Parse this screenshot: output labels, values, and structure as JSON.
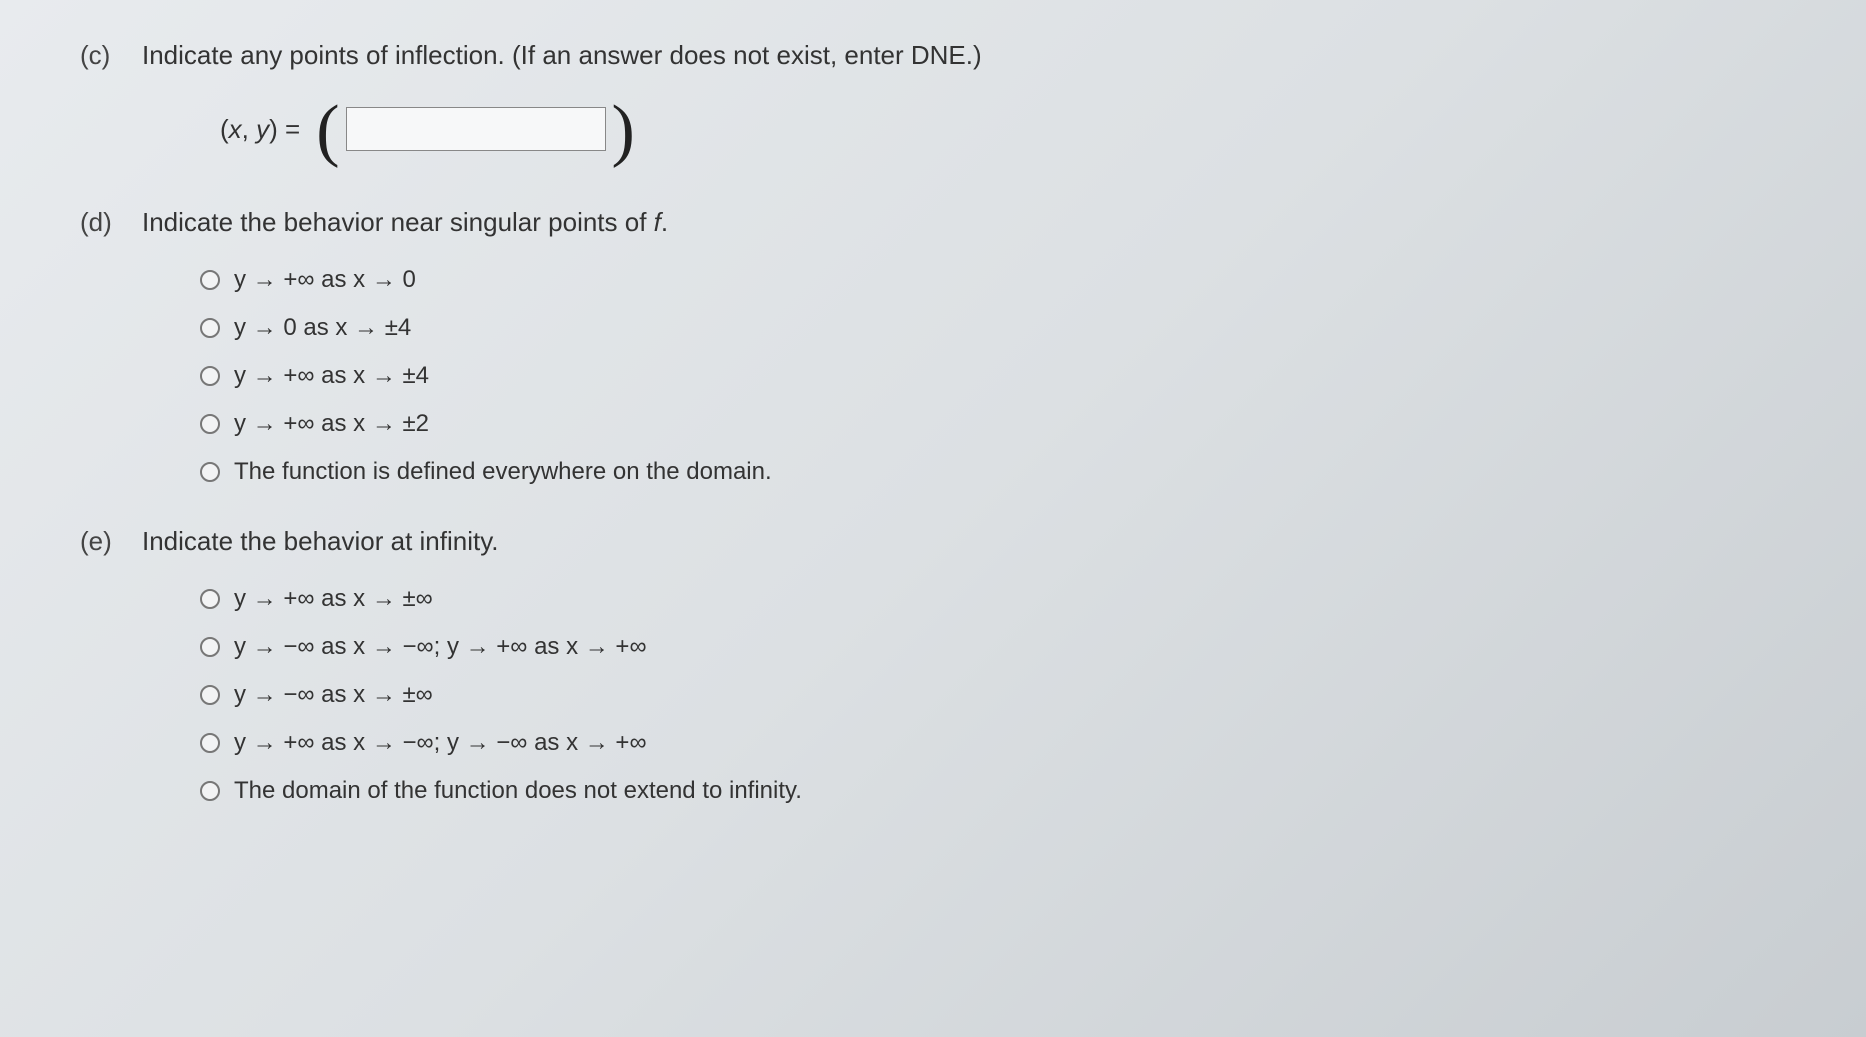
{
  "part_c": {
    "label": "(c)",
    "prompt": "Indicate any points of inflection. (If an answer does not exist, enter DNE.)",
    "xy_prefix": "(x, y) = ",
    "input_value": ""
  },
  "part_d": {
    "label": "(d)",
    "prompt_prefix": "Indicate the behavior near singular points of ",
    "prompt_fvar": "f",
    "prompt_suffix": ".",
    "options": [
      "y → +∞ as x → 0",
      "y → 0 as x → ±4",
      "y → +∞ as x → ±4",
      "y → +∞ as x → ±2",
      "The function is defined everywhere on the domain."
    ]
  },
  "part_e": {
    "label": "(e)",
    "prompt": "Indicate the behavior at infinity.",
    "options": [
      "y → +∞ as x → ±∞",
      "y → −∞ as x → −∞; y → +∞ as x → +∞",
      "y → −∞ as x → ±∞",
      "y → +∞ as x → −∞; y → −∞ as x → +∞",
      "The domain of the function does not extend to infinity."
    ]
  }
}
